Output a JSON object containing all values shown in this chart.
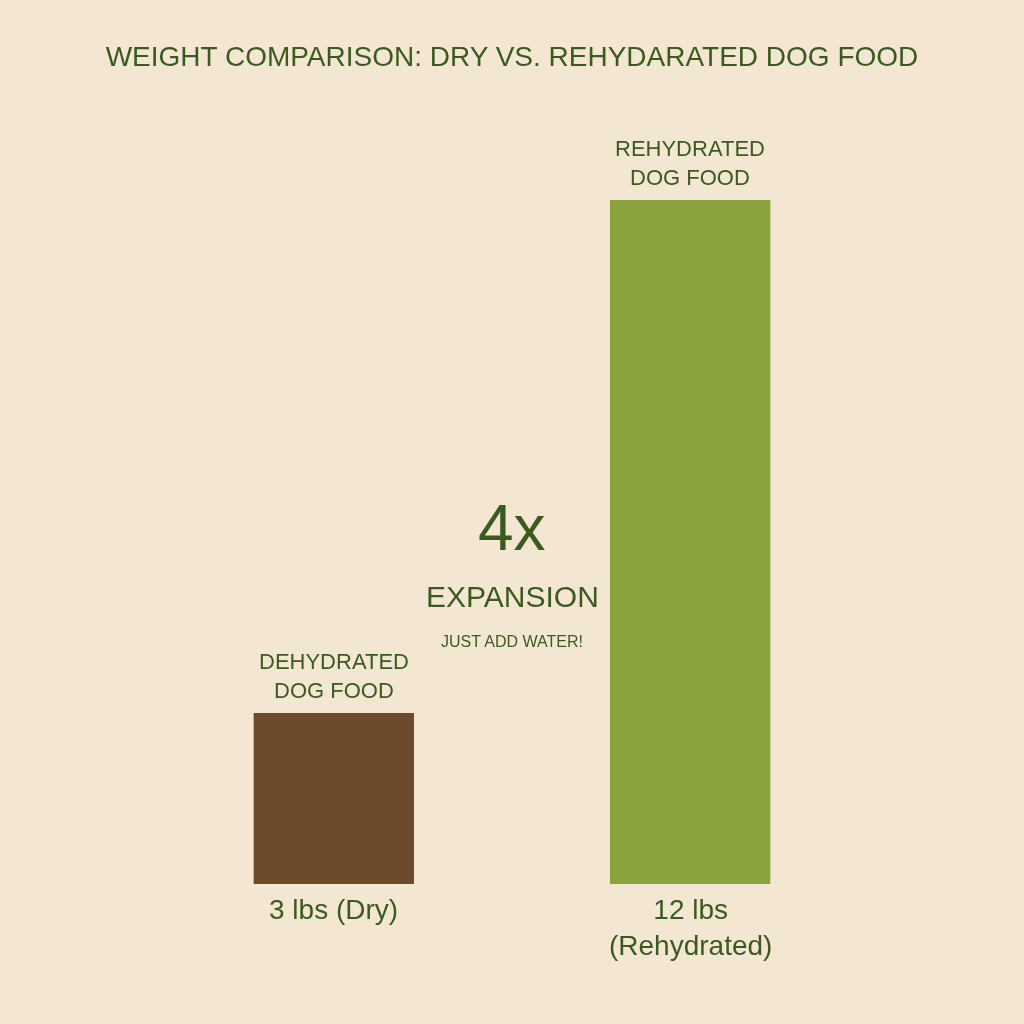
{
  "chart_data": {
    "type": "bar",
    "title": "WEIGHT COMPARISON: DRY VS. REHYDARATED DOG FOOD",
    "categories": [
      "DEHYDRATED DOG FOOD",
      "REHYDRATED DOG FOOD"
    ],
    "values": [
      3,
      12
    ],
    "colors": [
      "#6e4a2c",
      "#8aa33c"
    ],
    "value_labels": [
      "3 lbs (Dry)",
      "12 lbs (Rehydrated)"
    ],
    "annotations": [
      "4x",
      "EXPANSION",
      "JUST ADD WATER!"
    ]
  }
}
